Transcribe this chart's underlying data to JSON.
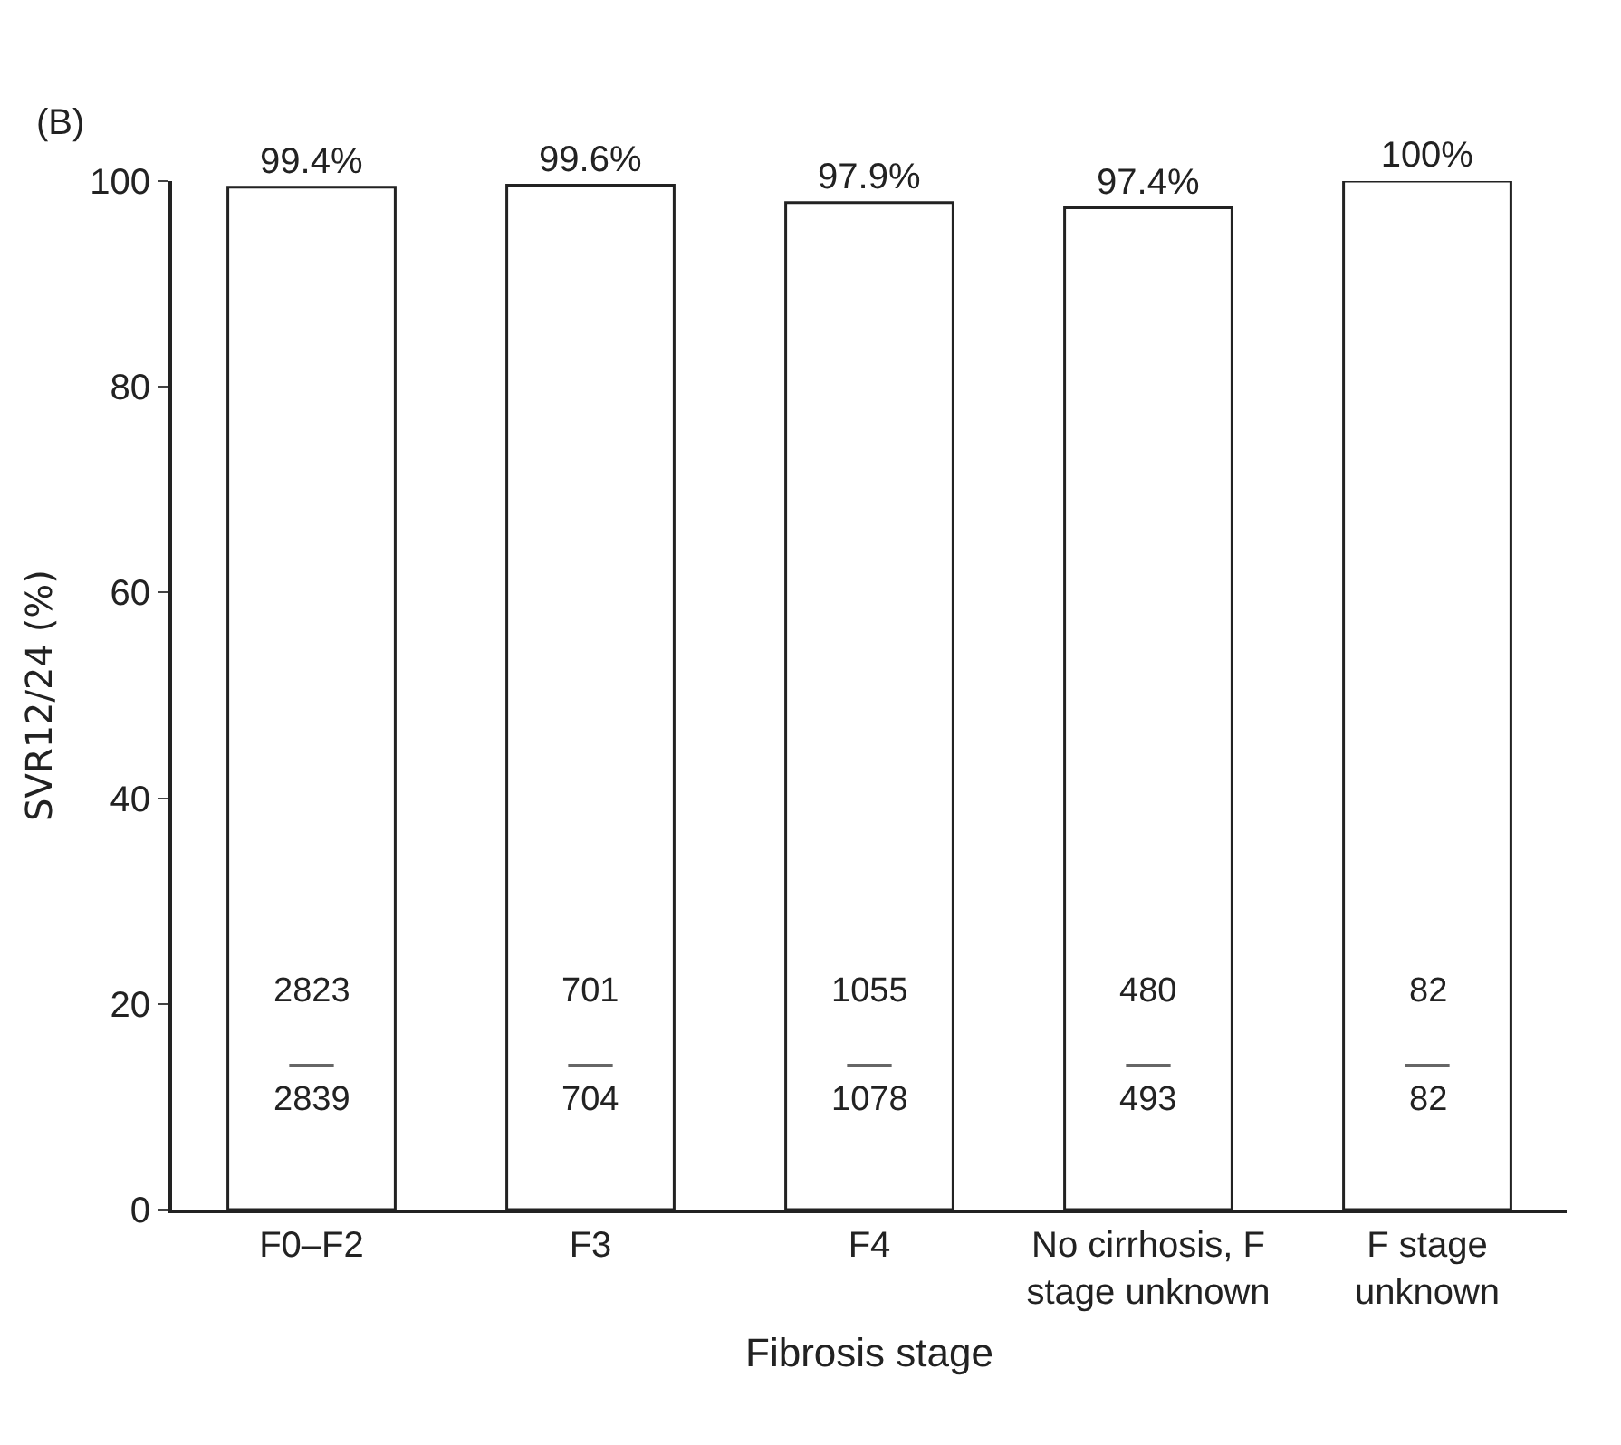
{
  "chart_data": {
    "type": "bar",
    "xlabel": "Fibrosis stage",
    "ylabel": "SVR12/24 (%)",
    "categories": [
      "F0–F2",
      "F3",
      "F4",
      "No cirrhosis, F stage unknown",
      "F stage unknown"
    ],
    "values": [
      99.4,
      99.6,
      97.9,
      97.4,
      100
    ],
    "value_labels": [
      "99.4%",
      "99.6%",
      "97.9%",
      "97.4%",
      "100%"
    ],
    "color": "#ffffff",
    "ylim": [
      0,
      100
    ],
    "yticks": [
      0,
      20,
      40,
      60,
      80,
      100
    ],
    "legend": false,
    "annotations": [
      "(B)",
      "2823",
      "2839",
      "701",
      "704",
      "1055",
      "1078",
      "480",
      "493",
      "82",
      "82"
    ]
  }
}
